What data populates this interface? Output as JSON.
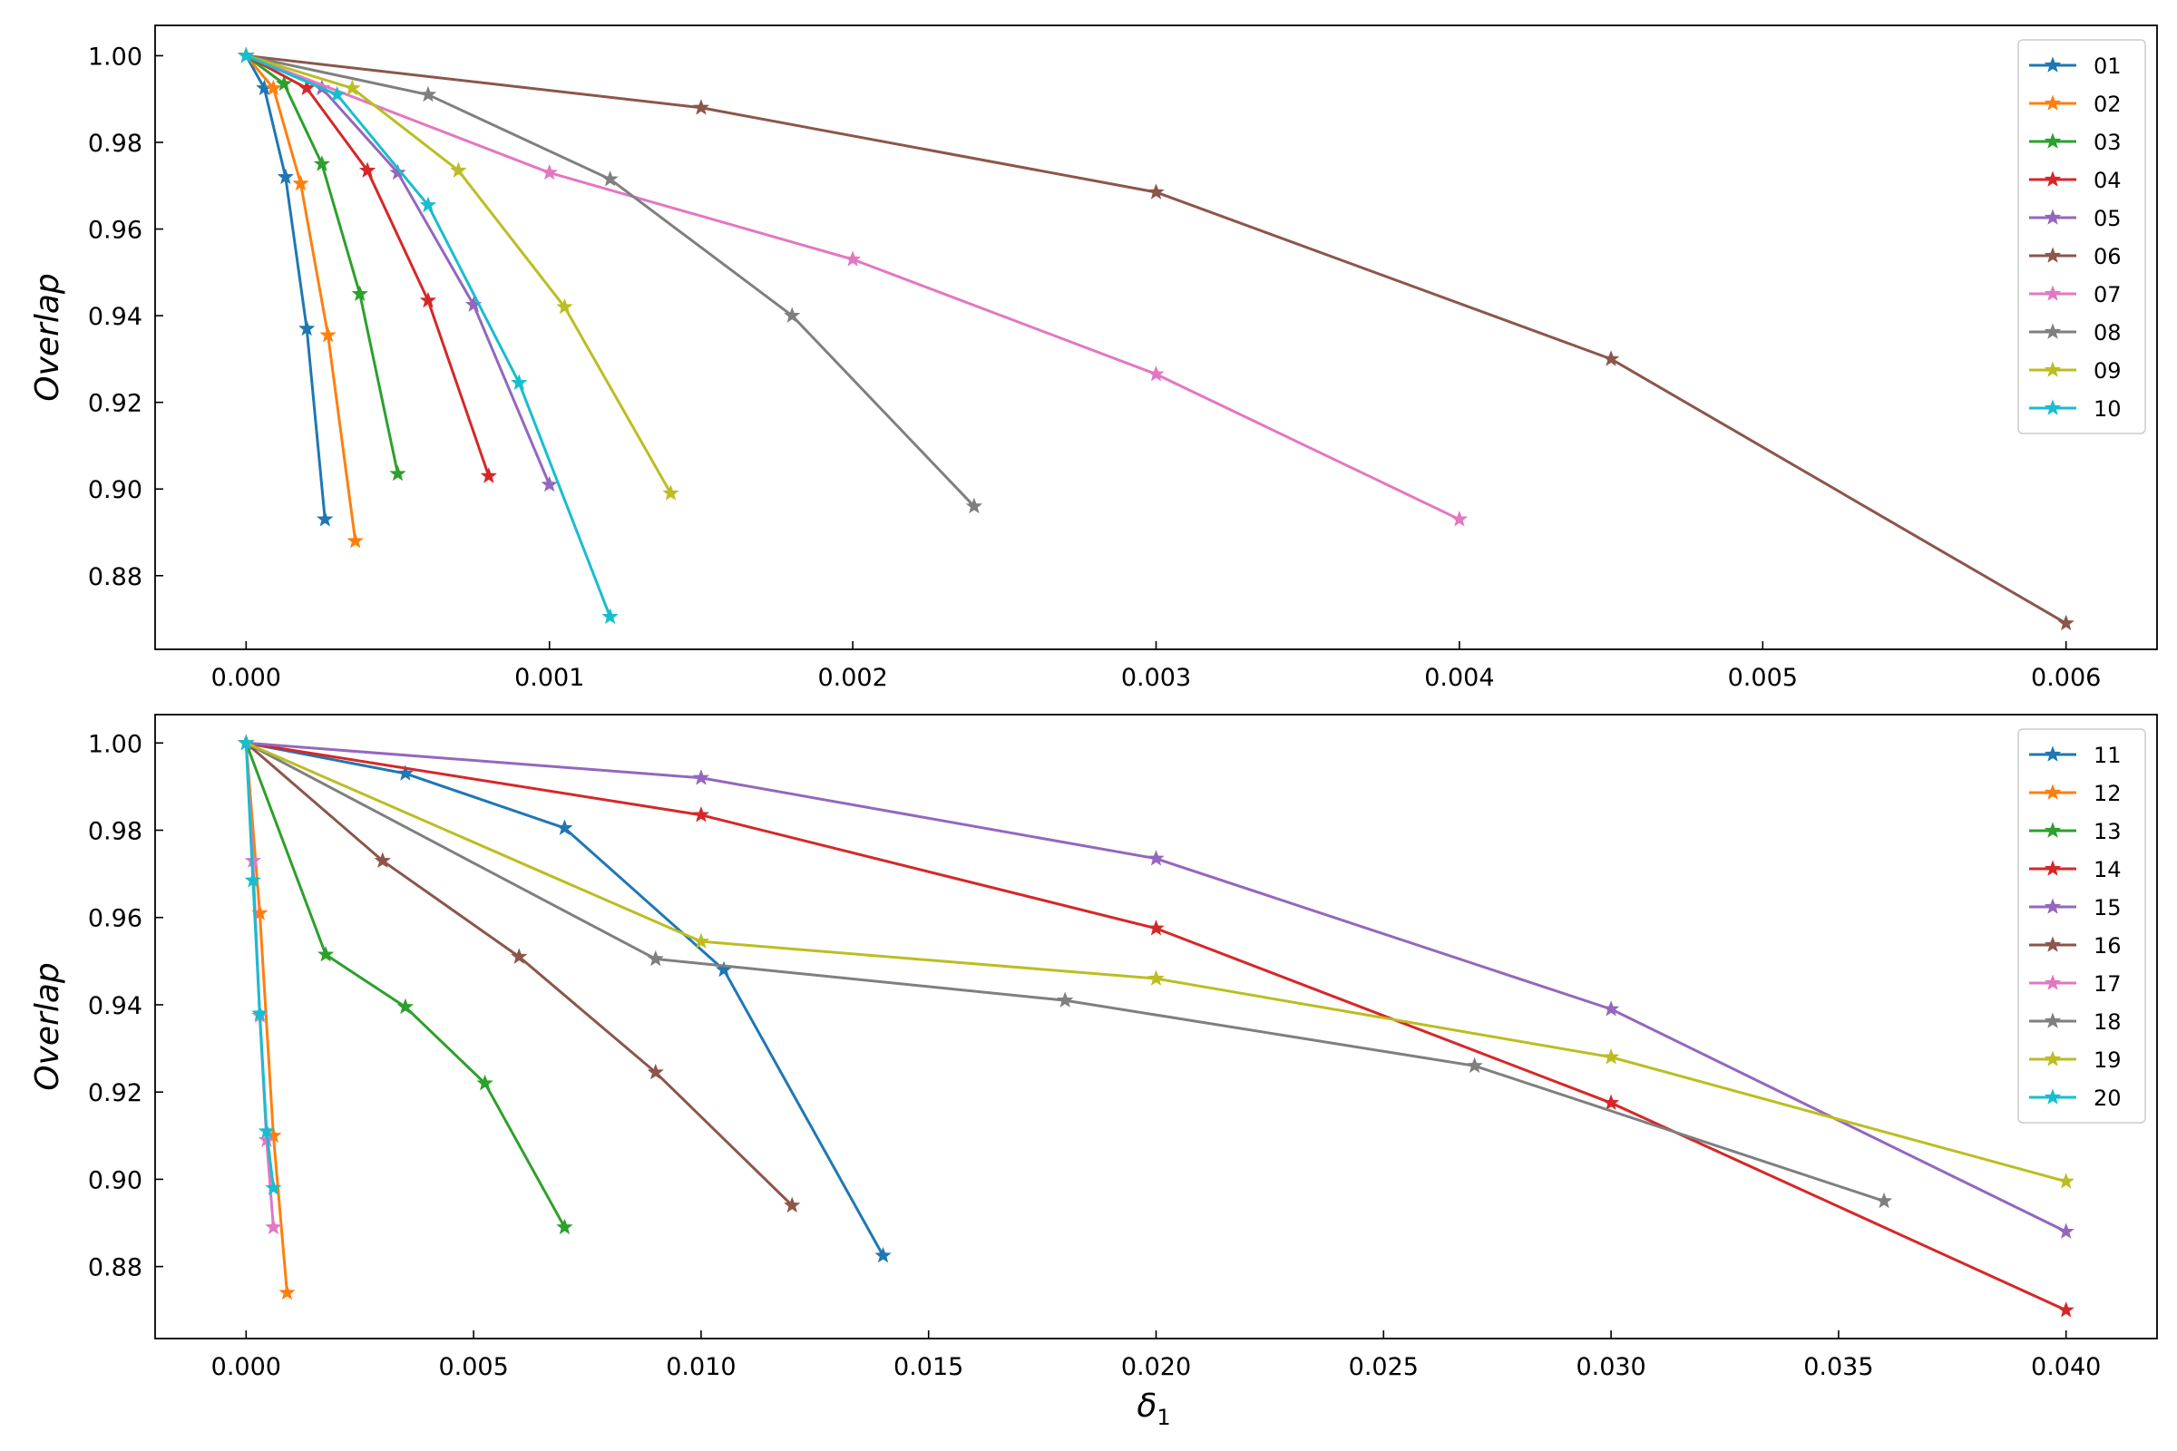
{
  "figure": {
    "xlabel_main": "δ",
    "xlabel_sub": "1"
  },
  "marker_symbol": "★",
  "chart_data": [
    {
      "type": "line",
      "title": "",
      "xlabel": "",
      "ylabel": "Overlap",
      "xlim": [
        -0.0003,
        0.0063
      ],
      "ylim": [
        0.863,
        1.007
      ],
      "xticks": [
        0.0,
        0.001,
        0.002,
        0.003,
        0.004,
        0.005,
        0.006
      ],
      "xtick_labels": [
        "0.000",
        "0.001",
        "0.002",
        "0.003",
        "0.004",
        "0.005",
        "0.006"
      ],
      "yticks": [
        0.88,
        0.9,
        0.92,
        0.94,
        0.96,
        0.98,
        1.0
      ],
      "ytick_labels": [
        "0.88",
        "0.90",
        "0.92",
        "0.94",
        "0.96",
        "0.98",
        "1.00"
      ],
      "grid": false,
      "legend_position": "top-right",
      "series": [
        {
          "name": "01",
          "color": "#1f77b4",
          "x": [
            0,
            6e-05,
            0.00013,
            0.0002,
            0.00026
          ],
          "y": [
            1.0,
            0.9925,
            0.972,
            0.937,
            0.893
          ]
        },
        {
          "name": "02",
          "color": "#ff7f0e",
          "x": [
            0,
            9e-05,
            0.00018,
            0.00027,
            0.00036
          ],
          "y": [
            1.0,
            0.9925,
            0.9705,
            0.9355,
            0.888
          ]
        },
        {
          "name": "03",
          "color": "#2ca02c",
          "x": [
            0,
            0.000125,
            0.00025,
            0.000375,
            0.0005
          ],
          "y": [
            1.0,
            0.9935,
            0.975,
            0.945,
            0.9035
          ]
        },
        {
          "name": "04",
          "color": "#d62728",
          "x": [
            0,
            0.0002,
            0.0004,
            0.0006,
            0.0008
          ],
          "y": [
            1.0,
            0.9925,
            0.9735,
            0.9435,
            0.903
          ]
        },
        {
          "name": "05",
          "color": "#9467bd",
          "x": [
            0,
            0.00025,
            0.0005,
            0.00075,
            0.001
          ],
          "y": [
            1.0,
            0.9925,
            0.973,
            0.9425,
            0.901
          ]
        },
        {
          "name": "06",
          "color": "#8c564b",
          "x": [
            0,
            0.0015,
            0.003,
            0.0045,
            0.006
          ],
          "y": [
            1.0,
            0.988,
            0.9685,
            0.93,
            0.869
          ]
        },
        {
          "name": "07",
          "color": "#e377c2",
          "x": [
            0,
            0.001,
            0.002,
            0.003,
            0.004
          ],
          "y": [
            1.0,
            0.973,
            0.953,
            0.9265,
            0.893
          ]
        },
        {
          "name": "08",
          "color": "#7f7f7f",
          "x": [
            0,
            0.0006,
            0.0012,
            0.0018,
            0.0024
          ],
          "y": [
            1.0,
            0.991,
            0.9715,
            0.94,
            0.896
          ]
        },
        {
          "name": "09",
          "color": "#bcbd22",
          "x": [
            0,
            0.00035,
            0.0007,
            0.00105,
            0.0014
          ],
          "y": [
            1.0,
            0.9925,
            0.9735,
            0.942,
            0.899
          ]
        },
        {
          "name": "10",
          "color": "#17becf",
          "x": [
            0,
            0.0003,
            0.0006,
            0.0009,
            0.0012
          ],
          "y": [
            1.0,
            0.991,
            0.9655,
            0.9245,
            0.8705
          ]
        }
      ]
    },
    {
      "type": "line",
      "title": "",
      "xlabel": "δ1",
      "ylabel": "Overlap",
      "xlim": [
        -0.002,
        0.042
      ],
      "ylim": [
        0.8635,
        1.0065
      ],
      "xticks": [
        0.0,
        0.005,
        0.01,
        0.015,
        0.02,
        0.025,
        0.03,
        0.035,
        0.04
      ],
      "xtick_labels": [
        "0.000",
        "0.005",
        "0.010",
        "0.015",
        "0.020",
        "0.025",
        "0.030",
        "0.035",
        "0.040"
      ],
      "yticks": [
        0.88,
        0.9,
        0.92,
        0.94,
        0.96,
        0.98,
        1.0
      ],
      "ytick_labels": [
        "0.88",
        "0.90",
        "0.92",
        "0.94",
        "0.96",
        "0.98",
        "1.00"
      ],
      "grid": false,
      "legend_position": "top-right",
      "series": [
        {
          "name": "11",
          "color": "#1f77b4",
          "x": [
            0,
            0.0035,
            0.007,
            0.0105,
            0.014
          ],
          "y": [
            1.0,
            0.993,
            0.9805,
            0.948,
            0.8825
          ]
        },
        {
          "name": "12",
          "color": "#ff7f0e",
          "x": [
            0,
            0.0003,
            0.0006,
            0.0009
          ],
          "y": [
            1.0,
            0.961,
            0.91,
            0.874
          ]
        },
        {
          "name": "13",
          "color": "#2ca02c",
          "x": [
            0,
            0.00175,
            0.0035,
            0.00525,
            0.007
          ],
          "y": [
            1.0,
            0.9515,
            0.9395,
            0.922,
            0.889
          ]
        },
        {
          "name": "14",
          "color": "#d62728",
          "x": [
            0,
            0.01,
            0.02,
            0.03,
            0.04
          ],
          "y": [
            1.0,
            0.9835,
            0.9575,
            0.9175,
            0.87
          ]
        },
        {
          "name": "15",
          "color": "#9467bd",
          "x": [
            0,
            0.01,
            0.02,
            0.03,
            0.04
          ],
          "y": [
            1.0,
            0.992,
            0.9735,
            0.939,
            0.888
          ]
        },
        {
          "name": "16",
          "color": "#8c564b",
          "x": [
            0,
            0.003,
            0.006,
            0.009,
            0.012
          ],
          "y": [
            1.0,
            0.973,
            0.951,
            0.9245,
            0.894
          ]
        },
        {
          "name": "17",
          "color": "#e377c2",
          "x": [
            0,
            0.00015,
            0.0003,
            0.00045,
            0.0006
          ],
          "y": [
            1.0,
            0.973,
            0.9375,
            0.909,
            0.889
          ]
        },
        {
          "name": "18",
          "color": "#7f7f7f",
          "x": [
            0,
            0.009,
            0.018,
            0.027,
            0.036
          ],
          "y": [
            1.0,
            0.9505,
            0.941,
            0.926,
            0.895
          ]
        },
        {
          "name": "19",
          "color": "#bcbd22",
          "x": [
            0,
            0.01,
            0.02,
            0.03,
            0.04
          ],
          "y": [
            1.0,
            0.9545,
            0.946,
            0.928,
            0.8995
          ]
        },
        {
          "name": "20",
          "color": "#17becf",
          "x": [
            0,
            0.00015,
            0.0003,
            0.00045,
            0.0006
          ],
          "y": [
            1.0,
            0.9685,
            0.938,
            0.911,
            0.898
          ]
        }
      ]
    }
  ]
}
